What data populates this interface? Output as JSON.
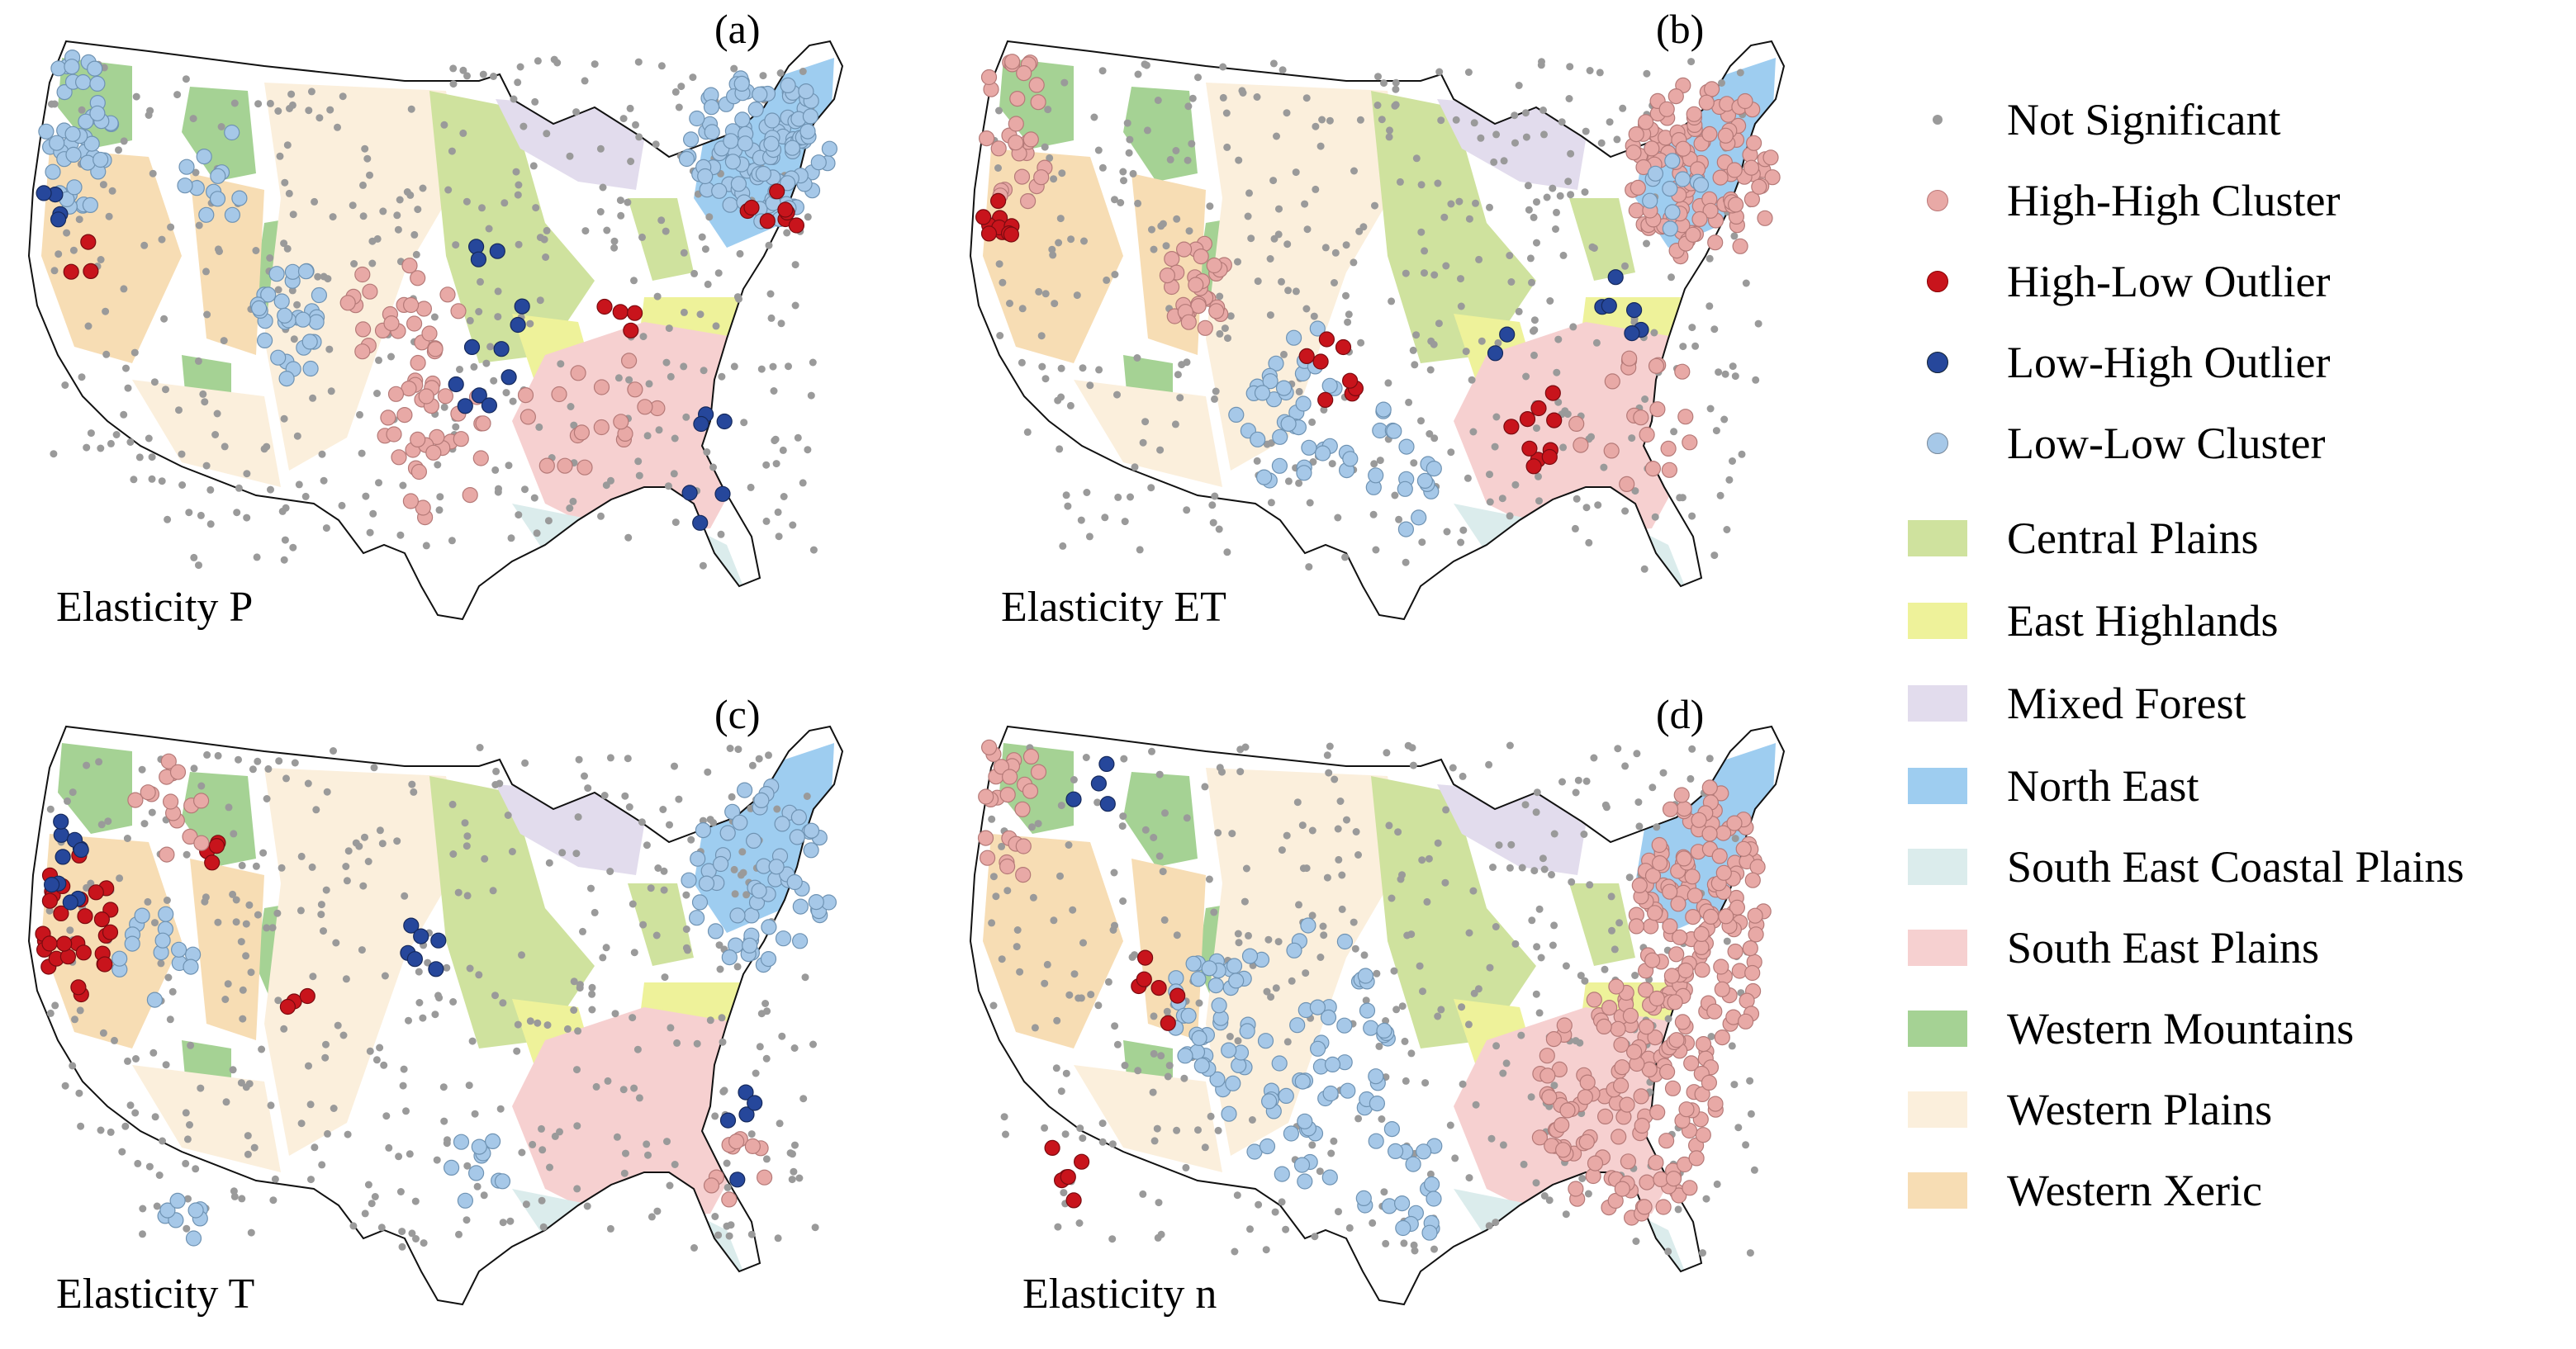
{
  "panels": [
    {
      "id": "a",
      "letter": "(a)",
      "title": "Elasticity P"
    },
    {
      "id": "b",
      "letter": "(b)",
      "title": "Elasticity ET"
    },
    {
      "id": "c",
      "letter": "(c)",
      "title": "Elasticity T"
    },
    {
      "id": "d",
      "letter": "(d)",
      "title": "Elasticity n"
    }
  ],
  "legend": {
    "points": [
      {
        "label": "Not Significant",
        "color": "#9a9a9a",
        "icon": "small-dot"
      },
      {
        "label": "High-High Cluster",
        "color": "#e8a9a6",
        "icon": "circle"
      },
      {
        "label": "High-Low Outlier",
        "color": "#c8141c",
        "icon": "circle"
      },
      {
        "label": "Low-High Outlier",
        "color": "#26479b",
        "icon": "circle"
      },
      {
        "label": "Low-Low Cluster",
        "color": "#a6c8e8",
        "icon": "circle"
      }
    ],
    "regions": [
      {
        "label": "Central Plains",
        "color": "#cfe29e"
      },
      {
        "label": "East Highlands",
        "color": "#eef29a"
      },
      {
        "label": "Mixed Forest",
        "color": "#e2dced"
      },
      {
        "label": "North East",
        "color": "#9ecdf0"
      },
      {
        "label": "South East Coastal Plains",
        "color": "#dbecec"
      },
      {
        "label": "South East Plains",
        "color": "#f6d0d0"
      },
      {
        "label": "Western Mountains",
        "color": "#a5d294"
      },
      {
        "label": "Western Plains",
        "color": "#fbefdc"
      },
      {
        "label": "Western Xeric",
        "color": "#f7ddb4"
      }
    ]
  }
}
